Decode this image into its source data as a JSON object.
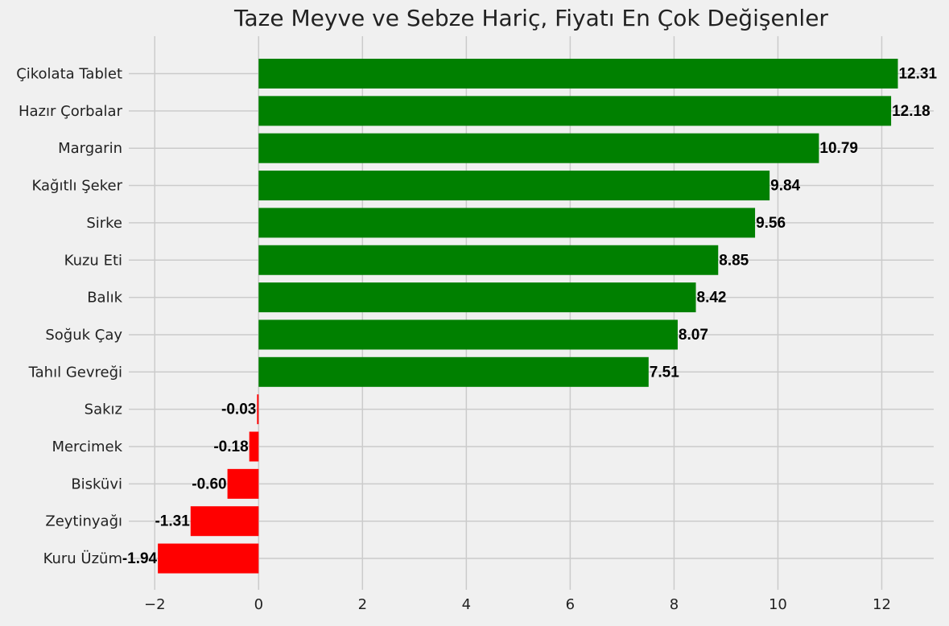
{
  "chart_data": {
    "type": "bar",
    "orientation": "horizontal",
    "title": "Taze Meyve ve Sebze Hariç, Fiyatı En Çok Değişenler",
    "xlabel": "",
    "ylabel": "",
    "xlim": [
      -2.5,
      13
    ],
    "xticks": [
      -2,
      0,
      2,
      4,
      6,
      8,
      10,
      12
    ],
    "xtick_labels": [
      "−2",
      "0",
      "2",
      "4",
      "6",
      "8",
      "10",
      "12"
    ],
    "grid": true,
    "categories": [
      "Çikolata Tablet",
      "Hazır Çorbalar",
      "Margarin",
      "Kağıtlı Şeker",
      "Sirke",
      "Kuzu Eti",
      "Balık",
      "Soğuk Çay",
      "Tahıl Gevreği",
      "Sakız",
      "Mercimek",
      "Bisküvi",
      "Zeytinyağı",
      "Kuru Üzüm"
    ],
    "values": [
      12.31,
      12.18,
      10.79,
      9.84,
      9.56,
      8.85,
      8.42,
      8.07,
      7.51,
      -0.03,
      -0.18,
      -0.6,
      -1.31,
      -1.94
    ],
    "value_labels": [
      "12.31",
      "12.18",
      "10.79",
      "9.84",
      "9.56",
      "8.85",
      "8.42",
      "8.07",
      "7.51",
      "-0.03",
      "-0.18",
      "-0.60",
      "-1.31",
      "-1.94"
    ],
    "colors": {
      "positive": "#008000",
      "negative": "#ff0000"
    }
  }
}
